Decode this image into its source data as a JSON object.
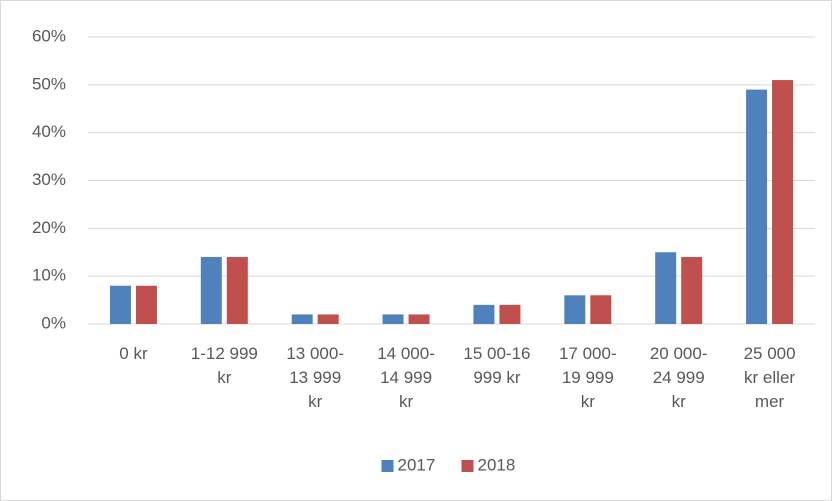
{
  "chart_data": {
    "type": "bar",
    "categories": [
      "0 kr",
      "1-12 999 kr",
      "13 000-13 999 kr",
      "14 000-14 999 kr",
      "15 00-16 999 kr",
      "17 000-19 999 kr",
      "20 000-24 999 kr",
      "25 000 kr eller mer"
    ],
    "series": [
      {
        "name": "2017",
        "color": "#4f81bd",
        "values": [
          8,
          14,
          2,
          2,
          4,
          6,
          15,
          49
        ]
      },
      {
        "name": "2018",
        "color": "#c0504d",
        "values": [
          8,
          14,
          2,
          2,
          4,
          6,
          14,
          51
        ]
      }
    ],
    "ylim": [
      0,
      60
    ],
    "yticks": [
      {
        "value": 0,
        "label": "0%"
      },
      {
        "value": 10,
        "label": "10%"
      },
      {
        "value": 20,
        "label": "20%"
      },
      {
        "value": 30,
        "label": "30%"
      },
      {
        "value": 40,
        "label": "40%"
      },
      {
        "value": 50,
        "label": "50%"
      },
      {
        "value": 60,
        "label": "60%"
      }
    ],
    "grid": true,
    "legend": "bottom"
  }
}
